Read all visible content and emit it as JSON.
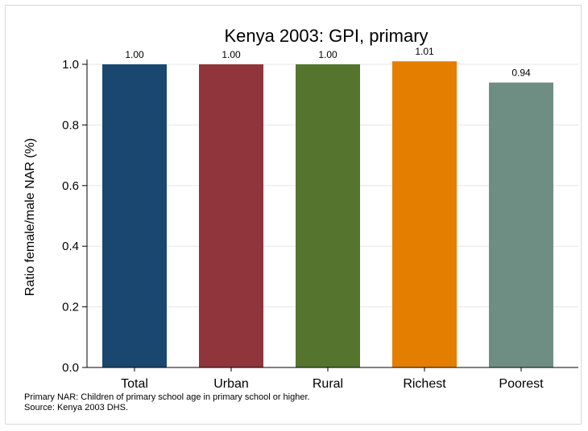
{
  "chart_data": {
    "type": "bar",
    "title": "Kenya 2003: GPI, primary",
    "xlabel": "",
    "ylabel": "Ratio female/male NAR (%)",
    "categories": [
      "Total",
      "Urban",
      "Rural",
      "Richest",
      "Poorest"
    ],
    "values": [
      1.0,
      1.0,
      1.0,
      1.01,
      0.94
    ],
    "value_labels": [
      "1.00",
      "1.00",
      "1.00",
      "1.01",
      "0.94"
    ],
    "colors": [
      "#1a476f",
      "#90353b",
      "#55752f",
      "#e37e00",
      "#6e8e84"
    ],
    "ylim": [
      0,
      1.0
    ],
    "yticks": [
      0.0,
      0.2,
      0.4,
      0.6,
      0.8,
      1.0
    ],
    "ytick_labels": [
      "0.0",
      "0.2",
      "0.4",
      "0.6",
      "0.8",
      "1.0"
    ],
    "grid": true,
    "legend": "none"
  },
  "notes": {
    "line1": "Primary NAR: Children of primary school age in primary school or higher.",
    "line2": "Source: Kenya 2003 DHS."
  }
}
